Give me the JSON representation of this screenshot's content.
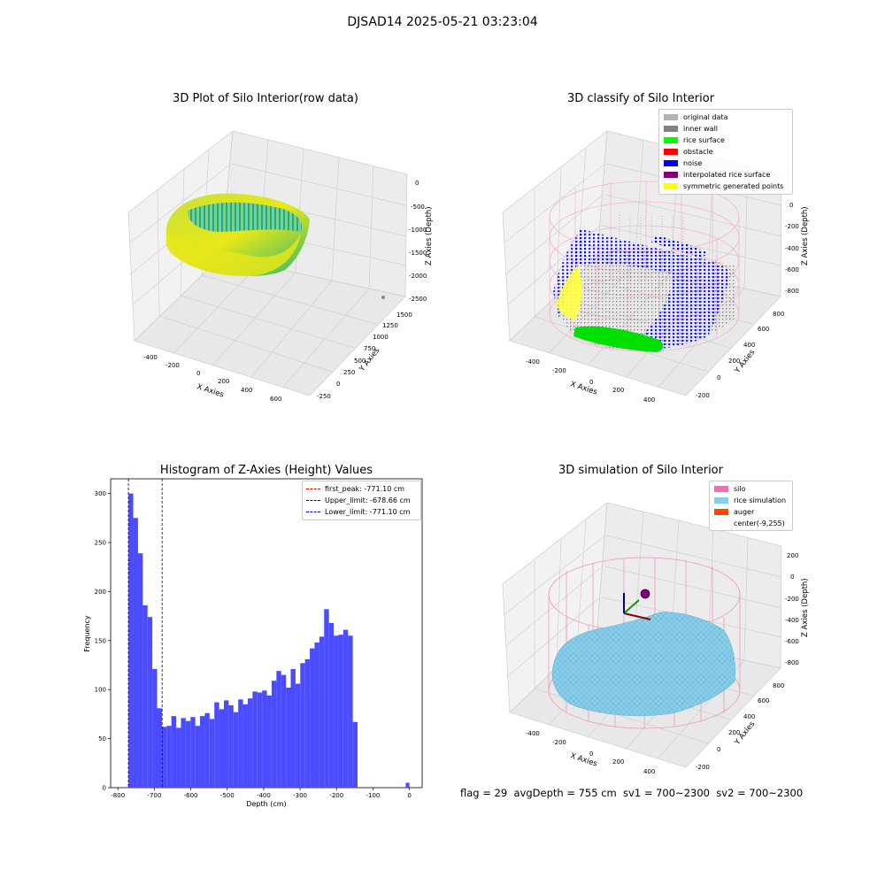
{
  "suptitle": "DJSAD14 2025-05-21 03:23:04",
  "footer": "flag = 29  avgDepth = 755 cm  sv1 = 700~2300  sv2 = 700~2300",
  "panel1": {
    "title": "3D Plot of Silo Interior(row data)",
    "xlabel": "X Axies",
    "ylabel": "Y Axies",
    "zlabel": "Z Axies (Depth)",
    "xticks": [
      "-400",
      "-200",
      "0",
      "200",
      "400",
      "600"
    ],
    "yticks": [
      "-250",
      "0",
      "250",
      "500",
      "750",
      "1000",
      "1250",
      "1500"
    ],
    "zticks": [
      "0",
      "-500",
      "-1000",
      "-1500",
      "-2000",
      "-2500"
    ]
  },
  "panel2": {
    "title": "3D classify of Silo Interior",
    "xlabel": "X Axies",
    "ylabel": "Y Axies",
    "zlabel": "Z Axies (Depth)",
    "xticks": [
      "-400",
      "-200",
      "0",
      "200",
      "400"
    ],
    "yticks": [
      "-200",
      "0",
      "200",
      "400",
      "600",
      "800"
    ],
    "zticks": [
      "0",
      "-200",
      "-400",
      "-600",
      "-800"
    ],
    "legend": [
      {
        "label": "original data",
        "color": "#b3b3b3"
      },
      {
        "label": "inner wall",
        "color": "#808080"
      },
      {
        "label": "rice surface",
        "color": "#00ff00"
      },
      {
        "label": "obstacle",
        "color": "#ff0000"
      },
      {
        "label": "noise",
        "color": "#0000ff"
      },
      {
        "label": "interpolated rice surface",
        "color": "#800080"
      },
      {
        "label": "symmetric generated points",
        "color": "#ffff00"
      }
    ]
  },
  "panel4": {
    "title": "3D simulation of Silo Interior",
    "xlabel": "X Axies",
    "ylabel": "Y Axies",
    "zlabel": "Z Axies (Depth)",
    "xticks": [
      "-400",
      "-200",
      "0",
      "200",
      "400"
    ],
    "yticks": [
      "-200",
      "0",
      "200",
      "400",
      "600",
      "800"
    ],
    "zticks": [
      "200",
      "0",
      "-200",
      "-400",
      "-600",
      "-800"
    ],
    "legend": [
      {
        "label": "silo",
        "color": "#ff69b4"
      },
      {
        "label": "rice simulation",
        "color": "#87ceeb"
      },
      {
        "label": "auger",
        "color": "#ff4500"
      },
      {
        "label": "center(-9,255)",
        "color": ""
      }
    ]
  },
  "chart_data": [
    {
      "type": "bar",
      "title": "Histogram of Z-Axies (Height) Values",
      "xlabel": "Depth (cm)",
      "ylabel": "Frequency",
      "xlim": [
        -800,
        0
      ],
      "ylim": [
        0,
        315
      ],
      "xticks": [
        "-800",
        "-700",
        "-600",
        "-500",
        "-400",
        "-300",
        "-200",
        "-100",
        "0"
      ],
      "yticks": [
        "0",
        "50",
        "100",
        "150",
        "200",
        "250",
        "300"
      ],
      "bar_color": "#4b4bff",
      "bins": [
        {
          "start": -771.1,
          "end": -758.0,
          "count": 300
        },
        {
          "start": -758.0,
          "end": -744.9,
          "count": 275
        },
        {
          "start": -744.9,
          "end": -731.8,
          "count": 239
        },
        {
          "start": -731.8,
          "end": -718.7,
          "count": 186
        },
        {
          "start": -718.7,
          "end": -705.6,
          "count": 174
        },
        {
          "start": -705.6,
          "end": -692.5,
          "count": 121
        },
        {
          "start": -692.5,
          "end": -679.4,
          "count": 81
        },
        {
          "start": -679.4,
          "end": -666.3,
          "count": 62
        },
        {
          "start": -666.3,
          "end": -653.2,
          "count": 63
        },
        {
          "start": -653.2,
          "end": -640.1,
          "count": 73
        },
        {
          "start": -640.1,
          "end": -627.0,
          "count": 61
        },
        {
          "start": -627.0,
          "end": -613.9,
          "count": 71
        },
        {
          "start": -613.9,
          "end": -600.8,
          "count": 68
        },
        {
          "start": -600.8,
          "end": -587.7,
          "count": 72
        },
        {
          "start": -587.7,
          "end": -574.6,
          "count": 63
        },
        {
          "start": -574.6,
          "end": -561.5,
          "count": 73
        },
        {
          "start": -561.5,
          "end": -548.4,
          "count": 76
        },
        {
          "start": -548.4,
          "end": -535.3,
          "count": 70
        },
        {
          "start": -535.3,
          "end": -522.2,
          "count": 87
        },
        {
          "start": -522.2,
          "end": -509.1,
          "count": 80
        },
        {
          "start": -509.1,
          "end": -496.0,
          "count": 89
        },
        {
          "start": -496.0,
          "end": -482.9,
          "count": 84
        },
        {
          "start": -482.9,
          "end": -469.8,
          "count": 77
        },
        {
          "start": -469.8,
          "end": -456.7,
          "count": 90
        },
        {
          "start": -456.7,
          "end": -443.6,
          "count": 85
        },
        {
          "start": -443.6,
          "end": -430.5,
          "count": 91
        },
        {
          "start": -430.5,
          "end": -417.4,
          "count": 98
        },
        {
          "start": -417.4,
          "end": -404.3,
          "count": 97
        },
        {
          "start": -404.3,
          "end": -391.2,
          "count": 99
        },
        {
          "start": -391.2,
          "end": -378.1,
          "count": 94
        },
        {
          "start": -378.1,
          "end": -365.0,
          "count": 109
        },
        {
          "start": -365.0,
          "end": -351.9,
          "count": 119
        },
        {
          "start": -351.9,
          "end": -338.8,
          "count": 115
        },
        {
          "start": -338.8,
          "end": -325.7,
          "count": 102
        },
        {
          "start": -325.7,
          "end": -312.6,
          "count": 121
        },
        {
          "start": -312.6,
          "end": -299.5,
          "count": 106
        },
        {
          "start": -299.5,
          "end": -286.4,
          "count": 127
        },
        {
          "start": -286.4,
          "end": -273.3,
          "count": 131
        },
        {
          "start": -273.3,
          "end": -260.2,
          "count": 142
        },
        {
          "start": -260.2,
          "end": -247.1,
          "count": 148
        },
        {
          "start": -247.1,
          "end": -234.0,
          "count": 154
        },
        {
          "start": -234.0,
          "end": -220.9,
          "count": 182
        },
        {
          "start": -220.9,
          "end": -207.8,
          "count": 168
        },
        {
          "start": -207.8,
          "end": -194.7,
          "count": 155
        },
        {
          "start": -194.7,
          "end": -181.6,
          "count": 156
        },
        {
          "start": -181.6,
          "end": -168.5,
          "count": 161
        },
        {
          "start": -168.5,
          "end": -155.4,
          "count": 155
        },
        {
          "start": -155.4,
          "end": -142.3,
          "count": 67
        },
        {
          "start": -142.3,
          "end": -129.2,
          "count": 0
        },
        {
          "start": -10.0,
          "end": 0.0,
          "count": 5
        }
      ],
      "vlines": [
        {
          "label": "first_peak: -771.10 cm",
          "x": -771.1,
          "color": "#ff0000"
        },
        {
          "label": "Upper_limit: -678.66 cm",
          "x": -678.66,
          "color": "#00008b"
        },
        {
          "label": "Lower_limit: -771.10 cm",
          "x": -771.1,
          "color": "#0000ff"
        }
      ]
    }
  ]
}
